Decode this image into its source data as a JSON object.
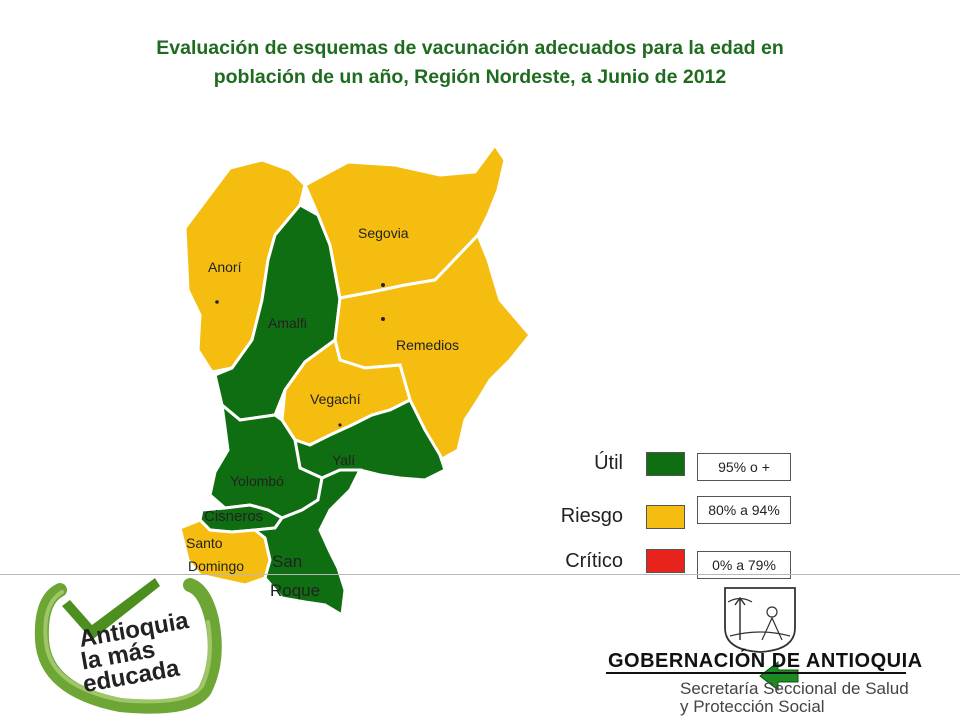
{
  "title": {
    "line1": "Evaluación de esquemas de vacunación adecuados para la edad en",
    "line2": "población de un año, Región Nordeste, a Junio de 2012"
  },
  "colors": {
    "util": "#0f6e12",
    "riesgo": "#f5bd10",
    "critico": "#e8231b",
    "title": "#1f6b1f"
  },
  "municipalities": [
    {
      "name": "Anorí",
      "category": "Riesgo"
    },
    {
      "name": "Amalfi",
      "category": "Útil"
    },
    {
      "name": "Segovia",
      "category": "Riesgo"
    },
    {
      "name": "Remedios",
      "category": "Riesgo"
    },
    {
      "name": "Vegachí",
      "category": "Riesgo"
    },
    {
      "name": "Yalí",
      "category": "Útil"
    },
    {
      "name": "Yolombó",
      "category": "Útil"
    },
    {
      "name": "Cisneros",
      "category": "Útil"
    },
    {
      "name": "Santo",
      "category": "Riesgo"
    },
    {
      "name": "Domingo",
      "category": "Riesgo"
    },
    {
      "name": "San",
      "category": "Útil"
    },
    {
      "name": "Roque",
      "category": "Útil"
    }
  ],
  "legend": [
    {
      "label": "Útil",
      "range": "95% o +",
      "color": "#0f6e12"
    },
    {
      "label": "Riesgo",
      "range": "80% a 94%",
      "color": "#f5bd10"
    },
    {
      "label": "Crítico",
      "range": "0% a 79%",
      "color": "#e8231b"
    }
  ],
  "logo": {
    "line1": "Antioquia",
    "line2": "la más",
    "line3": "educada"
  },
  "footer": {
    "government": "GOBERNACIÓN DE ANTIOQUIA",
    "secretaria_line1": "Secretaría Seccional de Salud",
    "secretaria_line2": "y Protección Social"
  },
  "icons": {
    "back": "back-arrow-icon",
    "crest": "coat-of-arms-icon",
    "check": "checkmark-icon"
  }
}
